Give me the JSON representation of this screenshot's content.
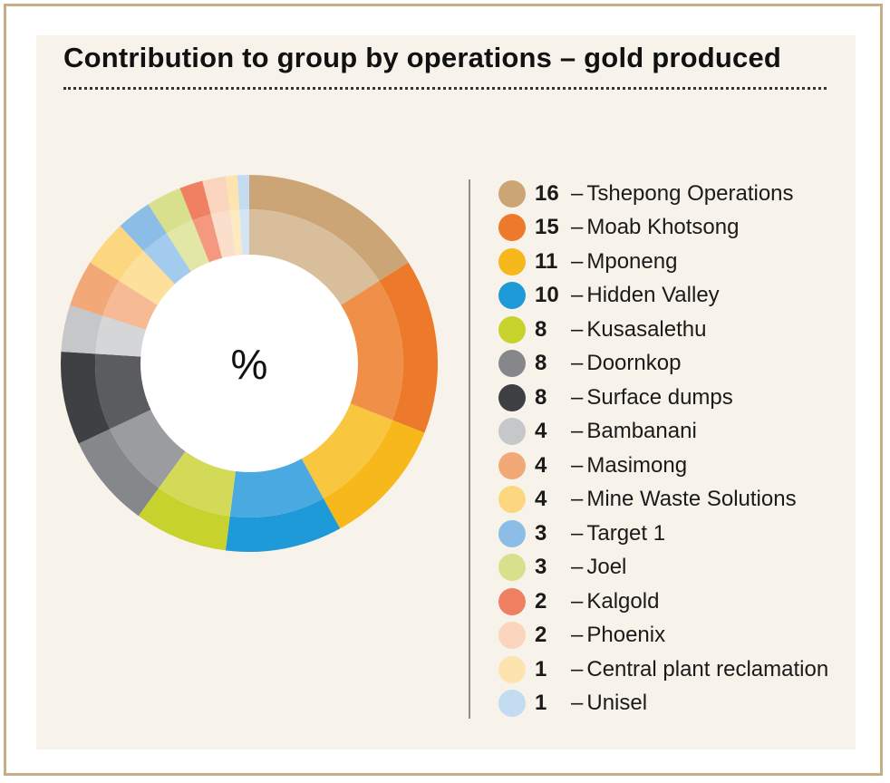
{
  "chart_data": {
    "type": "donut",
    "title": "Contribution to group by operations – gold produced",
    "center_label": "%",
    "unit": "%",
    "categories": [
      "Tshepong Operations",
      "Moab Khotsong",
      "Mponeng",
      "Hidden Valley",
      "Kusasalethu",
      "Doornkop",
      "Surface dumps",
      "Bambanani",
      "Masimong",
      "Mine Waste Solutions",
      "Target 1",
      "Joel",
      "Kalgold",
      "Phoenix",
      "Central plant reclamation",
      "Unisel"
    ],
    "values": [
      16,
      15,
      11,
      10,
      8,
      8,
      8,
      4,
      4,
      4,
      3,
      3,
      2,
      2,
      1,
      1
    ],
    "colors": [
      "#cca577",
      "#ec7a2a",
      "#f7b81b",
      "#1f9ad8",
      "#c7d22c",
      "#85878b",
      "#3f4043",
      "#c5c7c9",
      "#f3a878",
      "#fcd77f",
      "#8bbde6",
      "#d9e08b",
      "#f08062",
      "#fad4bd",
      "#fde3ae",
      "#c3dcf2"
    ],
    "inner_colors": [
      "#d9be9b",
      "#ef8f48",
      "#f9c640",
      "#4aa9e0",
      "#d2da58",
      "#9a9ca0",
      "#5b5c5f",
      "#d5d6d8",
      "#f6ba94",
      "#fde09b",
      "#a2cbed",
      "#e2e7a6",
      "#f4987f",
      "#fbdfcd",
      "#fdeac2",
      "#d2e5f5"
    ],
    "legend_position": "right",
    "legend_dash": "–"
  }
}
